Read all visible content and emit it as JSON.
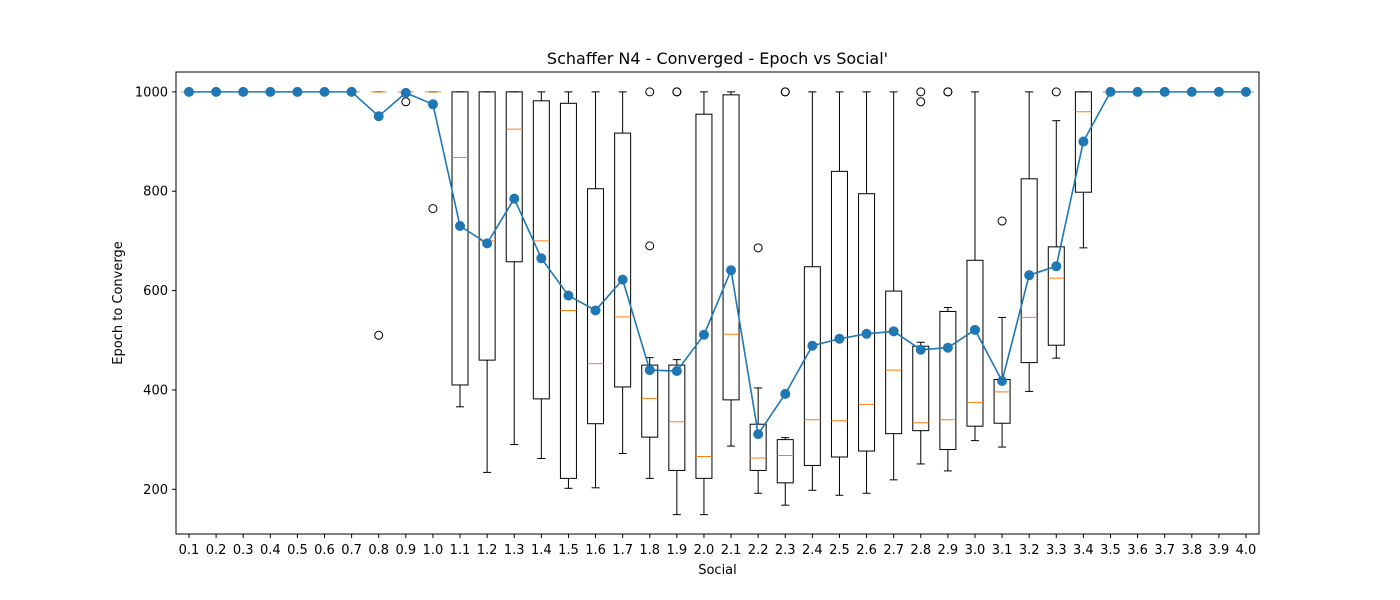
{
  "chart_data": {
    "type": "box",
    "title": "Schaffer N4 - Converged - Epoch vs Social'",
    "xlabel": "Social",
    "ylabel": "Epoch to Converge",
    "ylim": [
      110,
      1040
    ],
    "yticks": [
      200,
      400,
      600,
      800,
      1000
    ],
    "categories": [
      "0.1",
      "0.2",
      "0.3",
      "0.4",
      "0.5",
      "0.6",
      "0.7",
      "0.8",
      "0.9",
      "1.0",
      "1.1",
      "1.2",
      "1.3",
      "1.4",
      "1.5",
      "1.6",
      "1.7",
      "1.8",
      "1.9",
      "2.0",
      "2.1",
      "2.2",
      "2.3",
      "2.4",
      "2.5",
      "2.6",
      "2.7",
      "2.8",
      "2.9",
      "3.0",
      "3.1",
      "3.2",
      "3.3",
      "3.4",
      "3.5",
      "3.6",
      "3.7",
      "3.8",
      "3.9",
      "4.0"
    ],
    "boxes": [
      {
        "whislo": 1000,
        "q1": 1000,
        "med": 1000,
        "q3": 1000,
        "whishi": 1000,
        "fliers": []
      },
      {
        "whislo": 1000,
        "q1": 1000,
        "med": 1000,
        "q3": 1000,
        "whishi": 1000,
        "fliers": []
      },
      {
        "whislo": 1000,
        "q1": 1000,
        "med": 1000,
        "q3": 1000,
        "whishi": 1000,
        "fliers": []
      },
      {
        "whislo": 1000,
        "q1": 1000,
        "med": 1000,
        "q3": 1000,
        "whishi": 1000,
        "fliers": []
      },
      {
        "whislo": 1000,
        "q1": 1000,
        "med": 1000,
        "q3": 1000,
        "whishi": 1000,
        "fliers": []
      },
      {
        "whislo": 1000,
        "q1": 1000,
        "med": 1000,
        "q3": 1000,
        "whishi": 1000,
        "fliers": []
      },
      {
        "whislo": 1000,
        "q1": 1000,
        "med": 1000,
        "q3": 1000,
        "whishi": 1000,
        "fliers": []
      },
      {
        "whislo": 1000,
        "q1": 1000,
        "med": 1000,
        "q3": 1000,
        "whishi": 1000,
        "fliers": [
          510
        ]
      },
      {
        "whislo": 1000,
        "q1": 1000,
        "med": 1000,
        "q3": 1000,
        "whishi": 1000,
        "fliers": [
          980
        ]
      },
      {
        "whislo": 1000,
        "q1": 1000,
        "med": 1000,
        "q3": 1000,
        "whishi": 1000,
        "fliers": [
          765
        ]
      },
      {
        "whislo": 366,
        "q1": 410,
        "med": 868,
        "q3": 1000,
        "whishi": 1000,
        "fliers": []
      },
      {
        "whislo": 234,
        "q1": 460,
        "med": 700,
        "q3": 1000,
        "whishi": 1000,
        "fliers": []
      },
      {
        "whislo": 290,
        "q1": 658,
        "med": 925,
        "q3": 1000,
        "whishi": 1000,
        "fliers": []
      },
      {
        "whislo": 262,
        "q1": 382,
        "med": 700,
        "q3": 982,
        "whishi": 1000,
        "fliers": []
      },
      {
        "whislo": 202,
        "q1": 222,
        "med": 560,
        "q3": 977,
        "whishi": 1000,
        "fliers": []
      },
      {
        "whislo": 203,
        "q1": 332,
        "med": 453,
        "q3": 805,
        "whishi": 1000,
        "fliers": []
      },
      {
        "whislo": 272,
        "q1": 406,
        "med": 547,
        "q3": 917,
        "whishi": 1000,
        "fliers": []
      },
      {
        "whislo": 222,
        "q1": 305,
        "med": 383,
        "q3": 450,
        "whishi": 465,
        "fliers": [
          690,
          1000
        ]
      },
      {
        "whislo": 149,
        "q1": 238,
        "med": 336,
        "q3": 450,
        "whishi": 461,
        "fliers": [
          1000,
          1000
        ]
      },
      {
        "whislo": 149,
        "q1": 222,
        "med": 266,
        "q3": 955,
        "whishi": 1000,
        "fliers": []
      },
      {
        "whislo": 287,
        "q1": 380,
        "med": 512,
        "q3": 994,
        "whishi": 1000,
        "fliers": []
      },
      {
        "whislo": 192,
        "q1": 238,
        "med": 263,
        "q3": 331,
        "whishi": 404,
        "fliers": [
          686
        ]
      },
      {
        "whislo": 168,
        "q1": 213,
        "med": 268,
        "q3": 300,
        "whishi": 304,
        "fliers": [
          1000,
          1000
        ]
      },
      {
        "whislo": 198,
        "q1": 248,
        "med": 340,
        "q3": 648,
        "whishi": 1000,
        "fliers": []
      },
      {
        "whislo": 188,
        "q1": 265,
        "med": 338,
        "q3": 840,
        "whishi": 1000,
        "fliers": []
      },
      {
        "whislo": 192,
        "q1": 277,
        "med": 371,
        "q3": 795,
        "whishi": 1000,
        "fliers": []
      },
      {
        "whislo": 219,
        "q1": 312,
        "med": 440,
        "q3": 599,
        "whishi": 1000,
        "fliers": []
      },
      {
        "whislo": 251,
        "q1": 318,
        "med": 334,
        "q3": 488,
        "whishi": 496,
        "fliers": [
          980,
          1000
        ]
      },
      {
        "whislo": 237,
        "q1": 280,
        "med": 340,
        "q3": 558,
        "whishi": 566,
        "fliers": [
          1000,
          1000
        ]
      },
      {
        "whislo": 298,
        "q1": 327,
        "med": 375,
        "q3": 661,
        "whishi": 1000,
        "fliers": []
      },
      {
        "whislo": 285,
        "q1": 333,
        "med": 396,
        "q3": 421,
        "whishi": 546,
        "fliers": [
          740
        ]
      },
      {
        "whislo": 397,
        "q1": 455,
        "med": 546,
        "q3": 825,
        "whishi": 1000,
        "fliers": []
      },
      {
        "whislo": 464,
        "q1": 490,
        "med": 625,
        "q3": 688,
        "whishi": 942,
        "fliers": [
          1000
        ]
      },
      {
        "whislo": 686,
        "q1": 798,
        "med": 960,
        "q3": 1000,
        "whishi": 1000,
        "fliers": []
      },
      {
        "whislo": 1000,
        "q1": 1000,
        "med": 1000,
        "q3": 1000,
        "whishi": 1000,
        "fliers": []
      },
      {
        "whislo": 1000,
        "q1": 1000,
        "med": 1000,
        "q3": 1000,
        "whishi": 1000,
        "fliers": []
      },
      {
        "whislo": 1000,
        "q1": 1000,
        "med": 1000,
        "q3": 1000,
        "whishi": 1000,
        "fliers": []
      },
      {
        "whislo": 1000,
        "q1": 1000,
        "med": 1000,
        "q3": 1000,
        "whishi": 1000,
        "fliers": []
      },
      {
        "whislo": 1000,
        "q1": 1000,
        "med": 1000,
        "q3": 1000,
        "whishi": 1000,
        "fliers": []
      },
      {
        "whislo": 1000,
        "q1": 1000,
        "med": 1000,
        "q3": 1000,
        "whishi": 1000,
        "fliers": []
      }
    ],
    "mean_line": {
      "values": [
        1000,
        1000,
        1000,
        1000,
        1000,
        1000,
        1000,
        951,
        998,
        975,
        730,
        695,
        785,
        665,
        590,
        560,
        622,
        440,
        438,
        511,
        641,
        311,
        392,
        489,
        503,
        513,
        518,
        481,
        485,
        521,
        418,
        631,
        649,
        900,
        1000,
        1000,
        1000,
        1000,
        1000,
        1000
      ],
      "color": "#1f77b4"
    },
    "colors": {
      "box_edge": "#000000",
      "median": "#ff7f0e",
      "mean_line": "#1f77b4",
      "background": "#ffffff"
    },
    "grid": false,
    "legend": "none"
  }
}
